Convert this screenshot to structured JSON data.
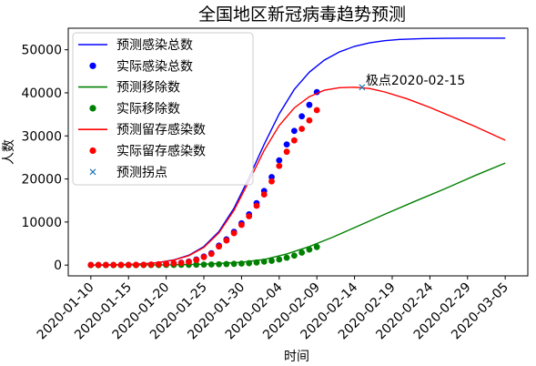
{
  "chart_data": {
    "type": "line",
    "title": "全国地区新冠病毒趋势预测",
    "xlabel": "时间",
    "ylabel": "人数",
    "xlim": [
      "2020-01-07",
      "2020-03-08"
    ],
    "ylim": [
      -2500,
      55000
    ],
    "yticks": [
      0,
      10000,
      20000,
      30000,
      40000,
      50000
    ],
    "xticks": [
      "2020-01-10",
      "2020-01-15",
      "2020-01-20",
      "2020-01-25",
      "2020-01-30",
      "2020-02-04",
      "2020-02-09",
      "2020-02-14",
      "2020-02-19",
      "2020-02-24",
      "2020-02-29",
      "2020-03-05"
    ],
    "legend_position": "top-left",
    "grid": false,
    "annotation": {
      "text": "极点2020-02-15",
      "x": "2020-02-15",
      "y": 41300
    },
    "series": [
      {
        "name": "预测感染总数",
        "kind": "line",
        "color": "#0000ff",
        "x": [
          "2020-01-10",
          "2020-01-14",
          "2020-01-17",
          "2020-01-19",
          "2020-01-21",
          "2020-01-23",
          "2020-01-25",
          "2020-01-27",
          "2020-01-29",
          "2020-01-31",
          "2020-02-02",
          "2020-02-04",
          "2020-02-06",
          "2020-02-08",
          "2020-02-10",
          "2020-02-12",
          "2020-02-14",
          "2020-02-16",
          "2020-02-18",
          "2020-02-20",
          "2020-02-23",
          "2020-02-26",
          "2020-03-01",
          "2020-03-05"
        ],
        "values": [
          0,
          100,
          300,
          600,
          1200,
          2300,
          4300,
          7800,
          13200,
          20300,
          28000,
          35100,
          40800,
          44800,
          47600,
          49500,
          50800,
          51600,
          52100,
          52400,
          52600,
          52650,
          52700,
          52700
        ]
      },
      {
        "name": "实际感染总数",
        "kind": "scatter",
        "color": "#0000ff",
        "x": [
          "2020-01-10",
          "2020-01-11",
          "2020-01-12",
          "2020-01-13",
          "2020-01-14",
          "2020-01-15",
          "2020-01-16",
          "2020-01-17",
          "2020-01-18",
          "2020-01-19",
          "2020-01-20",
          "2020-01-21",
          "2020-01-22",
          "2020-01-23",
          "2020-01-24",
          "2020-01-25",
          "2020-01-26",
          "2020-01-27",
          "2020-01-28",
          "2020-01-29",
          "2020-01-30",
          "2020-01-31",
          "2020-02-01",
          "2020-02-02",
          "2020-02-03",
          "2020-02-04",
          "2020-02-05",
          "2020-02-06",
          "2020-02-07",
          "2020-02-08",
          "2020-02-09"
        ],
        "values": [
          41,
          41,
          41,
          41,
          41,
          41,
          45,
          62,
          121,
          198,
          291,
          440,
          571,
          830,
          1287,
          1975,
          2744,
          4515,
          5974,
          7711,
          9692,
          11791,
          14380,
          17205,
          20438,
          24324,
          28018,
          31161,
          34546,
          37198,
          40171
        ]
      },
      {
        "name": "预测移除数",
        "kind": "line",
        "color": "#008000",
        "x": [
          "2020-01-10",
          "2020-01-20",
          "2020-01-25",
          "2020-01-30",
          "2020-02-02",
          "2020-02-05",
          "2020-02-08",
          "2020-02-11",
          "2020-02-14",
          "2020-02-18",
          "2020-02-22",
          "2020-02-26",
          "2020-03-01",
          "2020-03-05"
        ],
        "values": [
          0,
          60,
          200,
          650,
          1300,
          2600,
          4300,
          6400,
          8700,
          11800,
          14800,
          17700,
          20800,
          23700
        ]
      },
      {
        "name": "实际移除数",
        "kind": "scatter",
        "color": "#008000",
        "x": [
          "2020-01-10",
          "2020-01-11",
          "2020-01-12",
          "2020-01-13",
          "2020-01-14",
          "2020-01-15",
          "2020-01-16",
          "2020-01-17",
          "2020-01-18",
          "2020-01-19",
          "2020-01-20",
          "2020-01-21",
          "2020-01-22",
          "2020-01-23",
          "2020-01-24",
          "2020-01-25",
          "2020-01-26",
          "2020-01-27",
          "2020-01-28",
          "2020-01-29",
          "2020-01-30",
          "2020-01-31",
          "2020-02-01",
          "2020-02-02",
          "2020-02-03",
          "2020-02-04",
          "2020-02-05",
          "2020-02-06",
          "2020-02-07",
          "2020-02-08",
          "2020-02-09"
        ],
        "values": [
          0,
          0,
          0,
          0,
          0,
          0,
          0,
          5,
          10,
          20,
          30,
          40,
          60,
          80,
          100,
          120,
          150,
          200,
          240,
          290,
          350,
          450,
          600,
          800,
          1000,
          1300,
          1700,
          2200,
          2900,
          3600,
          4200
        ]
      },
      {
        "name": "预测留存感染数",
        "kind": "line",
        "color": "#ff0000",
        "x": [
          "2020-01-10",
          "2020-01-14",
          "2020-01-17",
          "2020-01-19",
          "2020-01-21",
          "2020-01-23",
          "2020-01-25",
          "2020-01-27",
          "2020-01-29",
          "2020-01-31",
          "2020-02-02",
          "2020-02-04",
          "2020-02-06",
          "2020-02-08",
          "2020-02-10",
          "2020-02-12",
          "2020-02-14",
          "2020-02-16",
          "2020-02-18",
          "2020-02-21",
          "2020-02-24",
          "2020-02-27",
          "2020-03-01",
          "2020-03-05"
        ],
        "values": [
          0,
          100,
          300,
          600,
          1150,
          2200,
          4100,
          7500,
          12700,
          19500,
          26600,
          32400,
          36500,
          39100,
          40600,
          41200,
          41300,
          41000,
          40200,
          38600,
          36600,
          34400,
          32200,
          29000
        ]
      },
      {
        "name": "实际留存感染数",
        "kind": "scatter",
        "color": "#ff0000",
        "x": [
          "2020-01-10",
          "2020-01-11",
          "2020-01-12",
          "2020-01-13",
          "2020-01-14",
          "2020-01-15",
          "2020-01-16",
          "2020-01-17",
          "2020-01-18",
          "2020-01-19",
          "2020-01-20",
          "2020-01-21",
          "2020-01-22",
          "2020-01-23",
          "2020-01-24",
          "2020-01-25",
          "2020-01-26",
          "2020-01-27",
          "2020-01-28",
          "2020-01-29",
          "2020-01-30",
          "2020-01-31",
          "2020-02-01",
          "2020-02-02",
          "2020-02-03",
          "2020-02-04",
          "2020-02-05",
          "2020-02-06",
          "2020-02-07",
          "2020-02-08",
          "2020-02-09"
        ],
        "values": [
          41,
          41,
          41,
          41,
          41,
          41,
          45,
          57,
          111,
          178,
          261,
          400,
          511,
          750,
          1187,
          1855,
          2594,
          4315,
          5734,
          7421,
          9342,
          11341,
          13780,
          16405,
          19438,
          23024,
          26318,
          28961,
          31646,
          33598,
          35971
        ]
      },
      {
        "name": "预测拐点",
        "kind": "marker-x",
        "color": "#1f77b4",
        "x": [
          "2020-02-15"
        ],
        "values": [
          41300
        ]
      }
    ]
  }
}
